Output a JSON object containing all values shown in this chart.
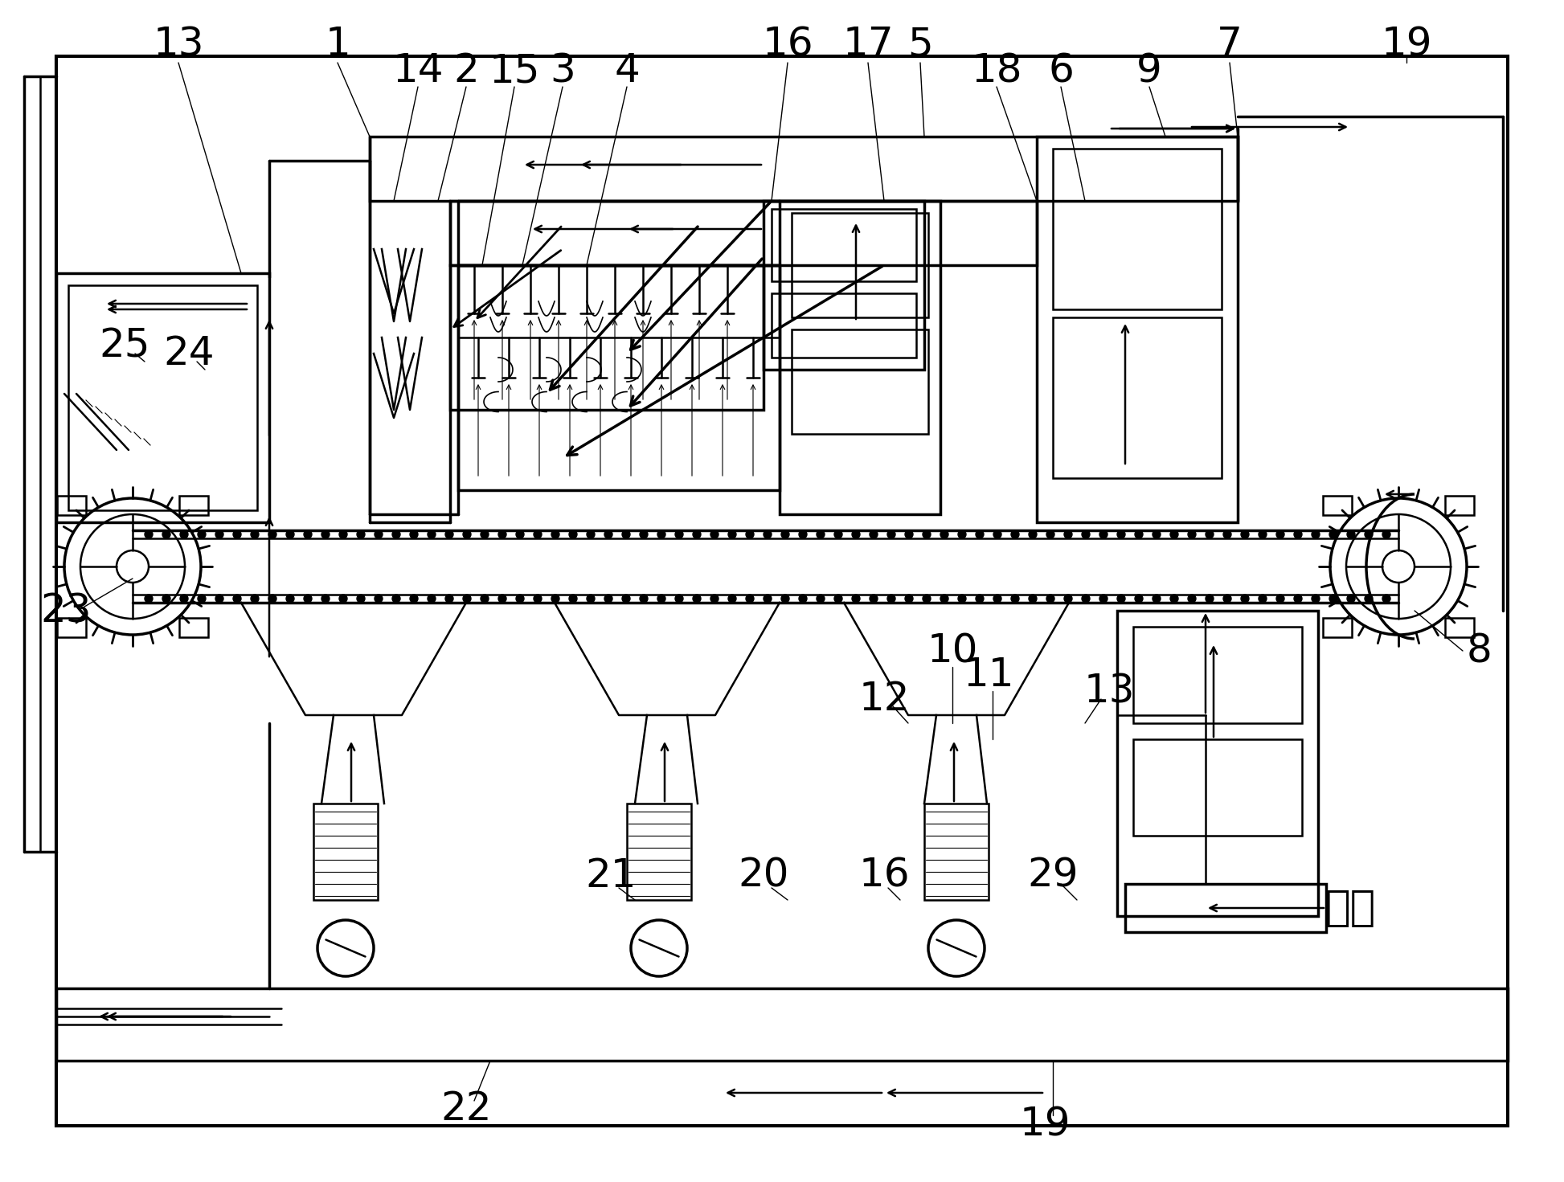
{
  "bg_color": "#ffffff",
  "line_color": "#000000",
  "fig_width": 19.46,
  "fig_height": 14.71,
  "dpi": 100,
  "xlim": [
    0,
    1946
  ],
  "ylim": [
    0,
    1471
  ],
  "fs_label": 36
}
